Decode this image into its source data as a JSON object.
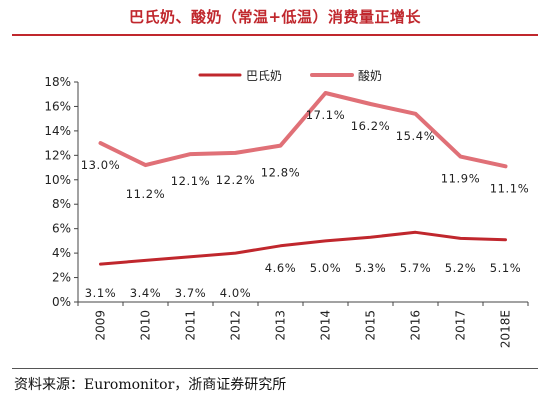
{
  "title": "巴氏奶、酸奶（常温+低温）消费量正增长",
  "source": "资料来源：Euromonitor，浙商证券研究所",
  "chart_data": {
    "type": "line",
    "title": "巴氏奶、酸奶（常温+低温）消费量正增长",
    "categories": [
      "2009",
      "2010",
      "2011",
      "2012",
      "2013",
      "2014",
      "2015",
      "2016",
      "2017",
      "2018E"
    ],
    "series": [
      {
        "name": "巴氏奶",
        "color": "#c0272d",
        "values": [
          3.1,
          3.4,
          3.7,
          4.0,
          4.6,
          5.0,
          5.3,
          5.7,
          5.2,
          5.1
        ],
        "labels": [
          "3.1%",
          "3.4%",
          "3.7%",
          "4.0%",
          "4.6%",
          "5.0%",
          "5.3%",
          "5.7%",
          "5.2%",
          "5.1%"
        ]
      },
      {
        "name": "酸奶",
        "color": "#e07077",
        "values": [
          13.0,
          11.2,
          12.1,
          12.2,
          12.8,
          17.1,
          16.2,
          15.4,
          11.9,
          11.1
        ],
        "labels": [
          "13.0%",
          "11.2%",
          "12.1%",
          "12.2%",
          "12.8%",
          "17.1%",
          "16.2%",
          "15.4%",
          "11.9%",
          "11.1%"
        ]
      }
    ],
    "yticks": [
      "0%",
      "2%",
      "4%",
      "6%",
      "8%",
      "10%",
      "12%",
      "14%",
      "16%",
      "18%"
    ],
    "ylim": [
      0,
      18
    ],
    "xlabel": "",
    "ylabel": "",
    "grid": false,
    "legend": "top-center"
  }
}
